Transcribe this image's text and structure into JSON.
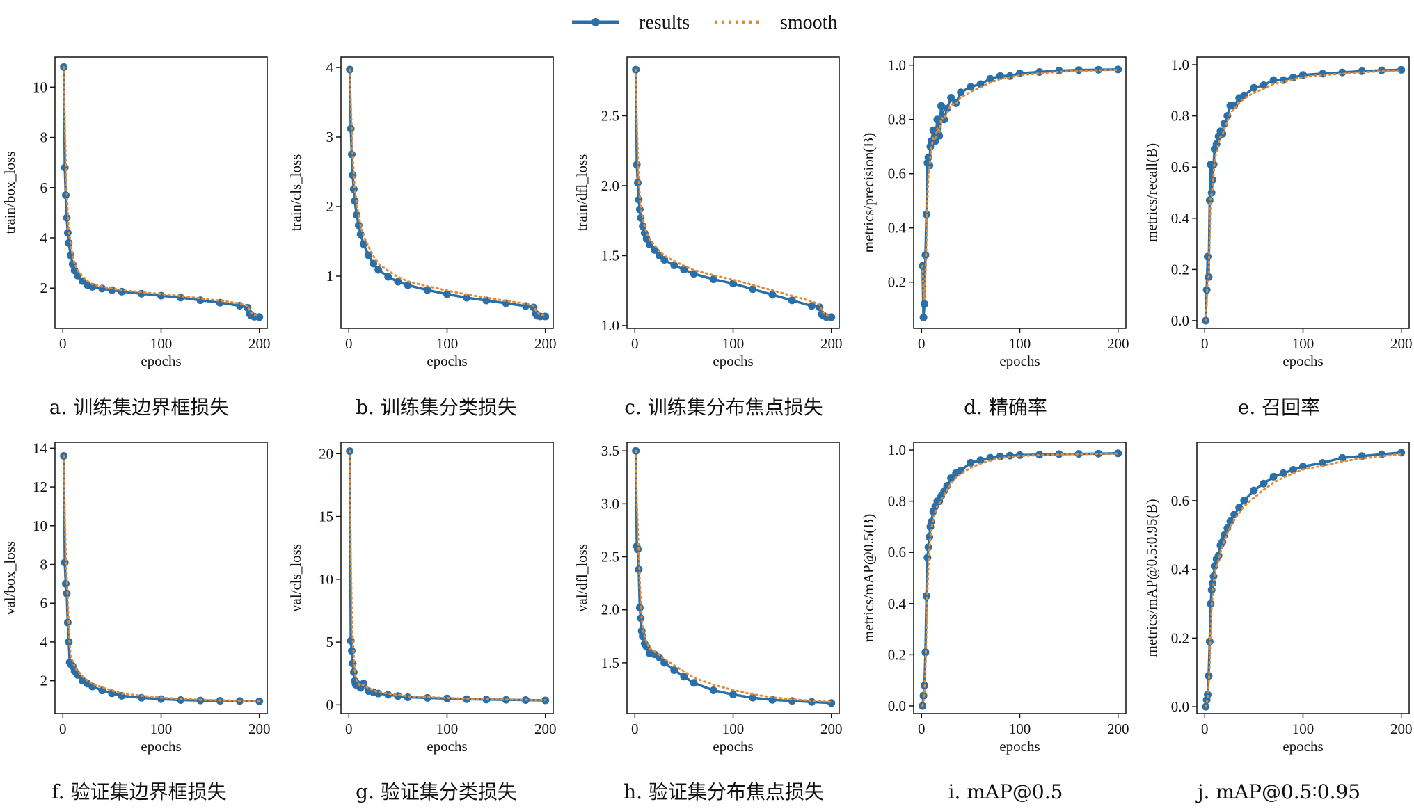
{
  "colors": {
    "results": "#2a6fa8",
    "smooth": "#e58a33",
    "axis": "#111111"
  },
  "legend": {
    "results": "results",
    "smooth": "smooth"
  },
  "chart_data": [
    {
      "type": "line",
      "caption": "a. 训练集边界框损失",
      "xlabel": "epochs",
      "ylabel": "train/box_loss",
      "xlim": [
        -8,
        208
      ],
      "ylim": [
        0.4,
        11.2
      ],
      "xticks": [
        0,
        100,
        200
      ],
      "yticks": [
        2,
        4,
        6,
        8,
        10
      ],
      "x": [
        1,
        2,
        3,
        4,
        5,
        6,
        8,
        10,
        12,
        15,
        20,
        25,
        30,
        40,
        50,
        60,
        80,
        100,
        120,
        140,
        160,
        180,
        188,
        190,
        192,
        195,
        200
      ],
      "series": [
        {
          "name": "results",
          "values": [
            10.8,
            6.8,
            5.7,
            4.8,
            4.2,
            3.8,
            3.3,
            2.95,
            2.7,
            2.5,
            2.28,
            2.12,
            2.05,
            1.98,
            1.92,
            1.86,
            1.78,
            1.7,
            1.62,
            1.52,
            1.42,
            1.3,
            1.22,
            0.98,
            0.9,
            0.86,
            0.85
          ]
        }
      ]
    },
    {
      "type": "line",
      "caption": "b. 训练集分类损失",
      "xlabel": "epochs",
      "ylabel": "train/cls_loss",
      "xlim": [
        -8,
        208
      ],
      "ylim": [
        0.25,
        4.15
      ],
      "xticks": [
        0,
        100,
        200
      ],
      "yticks": [
        1,
        2,
        3,
        4
      ],
      "x": [
        1,
        2,
        3,
        4,
        5,
        6,
        8,
        10,
        12,
        15,
        20,
        25,
        30,
        40,
        50,
        60,
        80,
        100,
        120,
        140,
        160,
        180,
        188,
        190,
        192,
        195,
        200
      ],
      "series": [
        {
          "name": "results",
          "values": [
            3.97,
            3.12,
            2.75,
            2.45,
            2.25,
            2.08,
            1.88,
            1.73,
            1.6,
            1.46,
            1.3,
            1.18,
            1.09,
            0.99,
            0.92,
            0.87,
            0.8,
            0.74,
            0.69,
            0.65,
            0.61,
            0.57,
            0.55,
            0.46,
            0.43,
            0.42,
            0.42
          ]
        }
      ]
    },
    {
      "type": "line",
      "caption": "c. 训练集分布焦点损失",
      "xlabel": "epochs",
      "ylabel": "train/dfl_loss",
      "xlim": [
        -8,
        208
      ],
      "ylim": [
        0.98,
        2.92
      ],
      "xticks": [
        0,
        100,
        200
      ],
      "yticks": [
        1.0,
        1.5,
        2.0,
        2.5
      ],
      "x": [
        1,
        2,
        3,
        4,
        5,
        6,
        8,
        10,
        12,
        15,
        20,
        25,
        30,
        40,
        50,
        60,
        80,
        100,
        120,
        140,
        160,
        180,
        188,
        190,
        192,
        195,
        200
      ],
      "series": [
        {
          "name": "results",
          "values": [
            2.83,
            2.15,
            2.02,
            1.9,
            1.83,
            1.77,
            1.71,
            1.66,
            1.62,
            1.58,
            1.54,
            1.5,
            1.47,
            1.43,
            1.4,
            1.37,
            1.33,
            1.3,
            1.26,
            1.22,
            1.18,
            1.14,
            1.13,
            1.08,
            1.07,
            1.06,
            1.06
          ]
        }
      ]
    },
    {
      "type": "line",
      "caption": "d. 精确率",
      "xlabel": "epochs",
      "ylabel": "metrics/precision(B)",
      "xlim": [
        -8,
        208
      ],
      "ylim": [
        0.03,
        1.03
      ],
      "xticks": [
        0,
        100,
        200
      ],
      "yticks": [
        0.2,
        0.4,
        0.6,
        0.8,
        1.0
      ],
      "x": [
        1,
        2,
        3,
        4,
        5,
        6,
        7,
        8,
        9,
        10,
        12,
        14,
        16,
        18,
        20,
        23,
        26,
        30,
        35,
        40,
        50,
        60,
        70,
        80,
        90,
        100,
        120,
        140,
        160,
        180,
        200
      ],
      "series": [
        {
          "name": "results",
          "values": [
            0.26,
            0.07,
            0.12,
            0.3,
            0.45,
            0.64,
            0.66,
            0.63,
            0.7,
            0.72,
            0.76,
            0.72,
            0.8,
            0.74,
            0.85,
            0.8,
            0.84,
            0.88,
            0.86,
            0.9,
            0.92,
            0.93,
            0.95,
            0.96,
            0.96,
            0.97,
            0.975,
            0.98,
            0.982,
            0.983,
            0.984
          ]
        }
      ]
    },
    {
      "type": "line",
      "caption": "e. 召回率",
      "xlabel": "epochs",
      "ylabel": "metrics/recall(B)",
      "xlim": [
        -8,
        208
      ],
      "ylim": [
        -0.03,
        1.03
      ],
      "xticks": [
        0,
        100,
        200
      ],
      "yticks": [
        0.0,
        0.2,
        0.4,
        0.6,
        0.8,
        1.0
      ],
      "x": [
        1,
        2,
        3,
        4,
        5,
        6,
        7,
        8,
        9,
        10,
        12,
        14,
        16,
        18,
        20,
        23,
        26,
        30,
        35,
        40,
        50,
        60,
        70,
        80,
        90,
        100,
        120,
        140,
        160,
        180,
        200
      ],
      "series": [
        {
          "name": "results",
          "values": [
            0.0,
            0.12,
            0.25,
            0.17,
            0.47,
            0.61,
            0.5,
            0.55,
            0.61,
            0.67,
            0.69,
            0.72,
            0.74,
            0.73,
            0.77,
            0.8,
            0.84,
            0.84,
            0.87,
            0.88,
            0.91,
            0.92,
            0.94,
            0.94,
            0.95,
            0.96,
            0.965,
            0.97,
            0.975,
            0.978,
            0.98
          ]
        }
      ]
    },
    {
      "type": "line",
      "caption": "f. 验证集边界框损失",
      "xlabel": "epochs",
      "ylabel": "val/box_loss",
      "xlim": [
        -8,
        208
      ],
      "ylim": [
        0.3,
        14.3
      ],
      "xticks": [
        0,
        100,
        200
      ],
      "yticks": [
        2,
        4,
        6,
        8,
        10,
        12,
        14
      ],
      "x": [
        1,
        2,
        3,
        4,
        5,
        6,
        7,
        8,
        10,
        12,
        15,
        20,
        25,
        30,
        40,
        50,
        60,
        80,
        100,
        120,
        140,
        160,
        180,
        200
      ],
      "series": [
        {
          "name": "results",
          "values": [
            13.6,
            8.1,
            7.0,
            6.5,
            5.0,
            4.0,
            2.95,
            2.85,
            2.75,
            2.5,
            2.3,
            2.0,
            1.85,
            1.7,
            1.5,
            1.35,
            1.22,
            1.12,
            1.05,
            1.0,
            0.98,
            0.96,
            0.95,
            0.94
          ]
        }
      ]
    },
    {
      "type": "line",
      "caption": "g. 验证集分类损失",
      "xlabel": "epochs",
      "ylabel": "val/cls_loss",
      "xlim": [
        -8,
        208
      ],
      "ylim": [
        -0.7,
        20.9
      ],
      "xticks": [
        0,
        100,
        200
      ],
      "yticks": [
        0,
        5,
        10,
        15,
        20
      ],
      "x": [
        1,
        2,
        3,
        4,
        5,
        6,
        7,
        8,
        10,
        12,
        15,
        20,
        25,
        30,
        40,
        50,
        60,
        80,
        100,
        120,
        140,
        160,
        180,
        200
      ],
      "series": [
        {
          "name": "results",
          "values": [
            20.2,
            5.1,
            4.3,
            3.3,
            2.6,
            1.9,
            1.6,
            1.7,
            1.5,
            1.35,
            1.7,
            1.1,
            1.0,
            0.9,
            0.8,
            0.7,
            0.6,
            0.55,
            0.5,
            0.45,
            0.42,
            0.4,
            0.38,
            0.35
          ]
        }
      ]
    },
    {
      "type": "line",
      "caption": "h. 验证集分布焦点损失",
      "xlabel": "epochs",
      "ylabel": "val/dfl_loss",
      "xlim": [
        -8,
        208
      ],
      "ylim": [
        1.02,
        3.58
      ],
      "xticks": [
        0,
        100,
        200
      ],
      "yticks": [
        1.5,
        2.0,
        2.5,
        3.0,
        3.5
      ],
      "x": [
        1,
        2,
        3,
        4,
        5,
        6,
        7,
        8,
        10,
        12,
        15,
        20,
        25,
        30,
        40,
        50,
        60,
        80,
        100,
        120,
        140,
        160,
        180,
        200
      ],
      "series": [
        {
          "name": "results",
          "values": [
            3.5,
            2.6,
            2.57,
            2.38,
            2.02,
            1.92,
            1.8,
            1.75,
            1.68,
            1.65,
            1.59,
            1.58,
            1.55,
            1.5,
            1.43,
            1.37,
            1.31,
            1.24,
            1.2,
            1.17,
            1.15,
            1.14,
            1.13,
            1.12
          ]
        }
      ]
    },
    {
      "type": "line",
      "caption": "i. mAP@0.5",
      "xlabel": "epochs",
      "ylabel": "metrics/mAP@0.5(B)",
      "xlim": [
        -8,
        208
      ],
      "ylim": [
        -0.03,
        1.03
      ],
      "xticks": [
        0,
        100,
        200
      ],
      "yticks": [
        0.0,
        0.2,
        0.4,
        0.6,
        0.8,
        1.0
      ],
      "x": [
        1,
        2,
        3,
        4,
        5,
        6,
        7,
        8,
        9,
        10,
        12,
        14,
        16,
        18,
        20,
        23,
        26,
        30,
        35,
        40,
        50,
        60,
        70,
        80,
        90,
        100,
        120,
        140,
        160,
        180,
        200
      ],
      "series": [
        {
          "name": "results",
          "values": [
            0.0,
            0.04,
            0.08,
            0.21,
            0.43,
            0.58,
            0.62,
            0.66,
            0.7,
            0.72,
            0.76,
            0.78,
            0.8,
            0.8,
            0.82,
            0.84,
            0.86,
            0.89,
            0.91,
            0.92,
            0.95,
            0.96,
            0.97,
            0.975,
            0.978,
            0.98,
            0.982,
            0.984,
            0.985,
            0.986,
            0.987
          ]
        }
      ]
    },
    {
      "type": "line",
      "caption": "j. mAP@0.5∶0.95",
      "xlabel": "epochs",
      "ylabel": "metrics/mAP@0.5:0.95(B)",
      "xlim": [
        -8,
        208
      ],
      "ylim": [
        -0.02,
        0.77
      ],
      "xticks": [
        0,
        100,
        200
      ],
      "yticks": [
        0.0,
        0.2,
        0.4,
        0.6
      ],
      "x": [
        1,
        2,
        3,
        4,
        5,
        6,
        7,
        8,
        9,
        10,
        12,
        14,
        16,
        18,
        20,
        23,
        26,
        30,
        35,
        40,
        50,
        60,
        70,
        80,
        90,
        100,
        120,
        140,
        160,
        180,
        200
      ],
      "series": [
        {
          "name": "results",
          "values": [
            0.0,
            0.02,
            0.035,
            0.09,
            0.19,
            0.3,
            0.34,
            0.36,
            0.38,
            0.41,
            0.43,
            0.44,
            0.47,
            0.48,
            0.5,
            0.52,
            0.54,
            0.56,
            0.58,
            0.6,
            0.63,
            0.65,
            0.67,
            0.68,
            0.69,
            0.7,
            0.71,
            0.725,
            0.73,
            0.735,
            0.74
          ]
        }
      ]
    }
  ]
}
